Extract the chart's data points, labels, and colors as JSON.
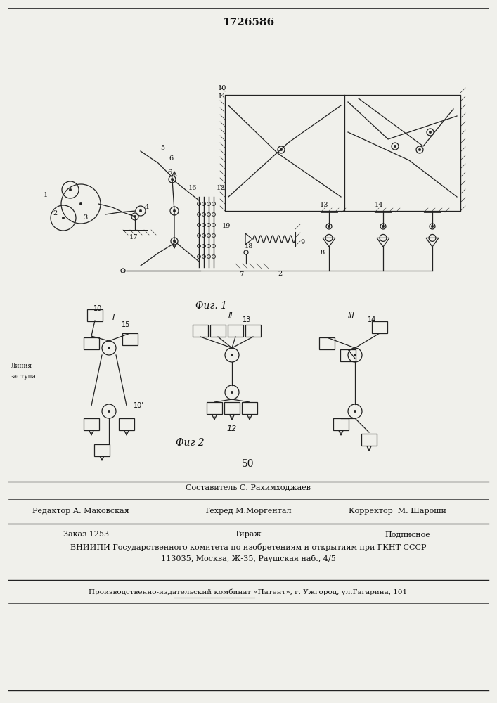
{
  "title": "1726586",
  "fig1_caption": "Фиг. 1",
  "fig2_caption": "Фиг 2",
  "page_number": "50",
  "editor_line": "Редактор А. Маковская",
  "composer_line": "Составитель С. Рахимходжаев",
  "techred_line": "Техред М.Моргентал",
  "corrector_line": "Корректор  М. Шароши",
  "order_line": "Заказ 1253",
  "tirazh_line": "Тираж",
  "podpisnoe_line": "Подписное",
  "vniiipi_line": "ВНИИПИ Государственного комитета по изобретениям и открытиям при ГКНТ СССР",
  "address_line": "113035, Москва, Ж-35, Раушская наб., 4/5",
  "proizv_line": "Производственно-издательский комбинат «Патент», г. Ужгород, ул.Гагарина, 101",
  "bg_color": "#f0f0eb",
  "line_color": "#222222",
  "text_color": "#111111"
}
